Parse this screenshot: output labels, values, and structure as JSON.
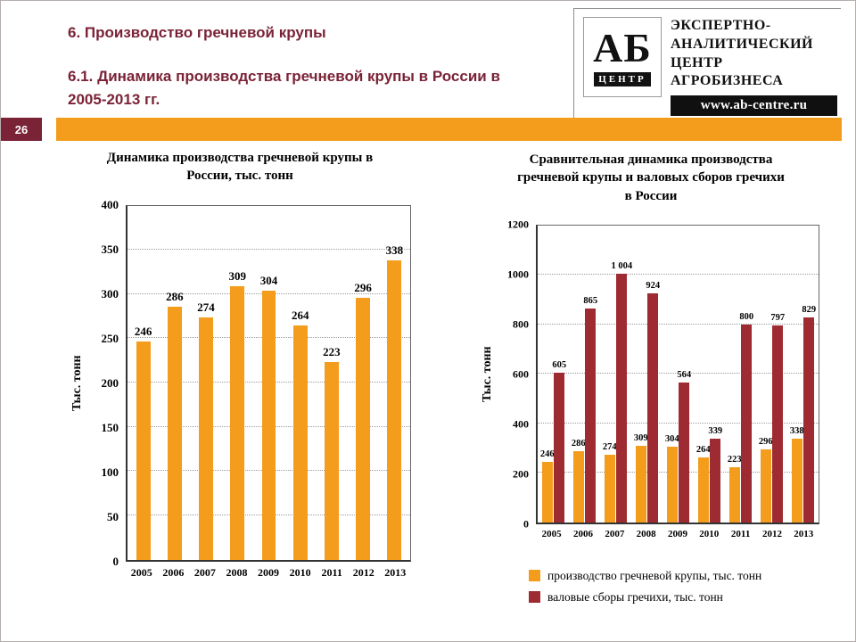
{
  "page": {
    "number": "26"
  },
  "header": {
    "section_title": "6. Производство гречневой крупы",
    "subsection_title": "6.1. Динамика производства гречневой крупы в России в 2005-2013 гг.",
    "logo": {
      "abbr": "АБ",
      "sub": "ЦЕНТР"
    },
    "org_lines": [
      "ЭКСПЕРТНО-",
      "АНАЛИТИЧЕСКИЙ",
      "ЦЕНТР",
      "АГРОБИЗНЕСА"
    ],
    "website": "www.ab-centre.ru"
  },
  "colors": {
    "accent_orange": "#F49C1C",
    "accent_maroon": "#7A2337",
    "series_red": "#9E2B31"
  },
  "chart_data": [
    {
      "type": "bar",
      "title": "Динамика производства гречневой крупы в России, тыс. тонн",
      "ylabel": "Тыс. тонн",
      "ylim": [
        0,
        400
      ],
      "yticks": [
        0,
        50,
        100,
        150,
        200,
        250,
        300,
        350,
        400
      ],
      "grid": true,
      "categories": [
        "2005",
        "2006",
        "2007",
        "2008",
        "2009",
        "2010",
        "2011",
        "2012",
        "2013"
      ],
      "series": [
        {
          "name": "производство гречневой крупы",
          "color": "#F49C1C",
          "values": [
            246,
            286,
            274,
            309,
            304,
            264,
            223,
            296,
            338
          ],
          "labels": [
            "246",
            "286",
            "274",
            "309",
            "304",
            "264",
            "223",
            "296",
            "338"
          ]
        }
      ]
    },
    {
      "type": "bar",
      "title": "Сравнительная динамика производства гречневой крупы и валовых сборов гречихи в России",
      "ylabel": "Тыс. тонн",
      "ylim": [
        0,
        1200
      ],
      "yticks": [
        0,
        200,
        400,
        600,
        800,
        1000,
        1200
      ],
      "grid": true,
      "categories": [
        "2005",
        "2006",
        "2007",
        "2008",
        "2009",
        "2010",
        "2011",
        "2012",
        "2013"
      ],
      "series": [
        {
          "name": "производство гречневой крупы, тыс. тонн",
          "color": "#F49C1C",
          "values": [
            246,
            286,
            274,
            309,
            304,
            264,
            223,
            296,
            338
          ],
          "labels": [
            "246",
            "286",
            "274",
            "309",
            "304",
            "264",
            "223",
            "296",
            "338"
          ]
        },
        {
          "name": "валовые сборы гречихи, тыс. тонн",
          "color": "#9E2B31",
          "values": [
            605,
            865,
            1004,
            924,
            564,
            339,
            800,
            797,
            829
          ],
          "labels": [
            "605",
            "865",
            "1 004",
            "924",
            "564",
            "339",
            "800",
            "797",
            "829"
          ]
        }
      ],
      "legend": [
        "производство гречневой крупы, тыс. тонн",
        "валовые сборы гречихи, тыс. тонн"
      ],
      "legend_position": "bottom-left"
    }
  ]
}
